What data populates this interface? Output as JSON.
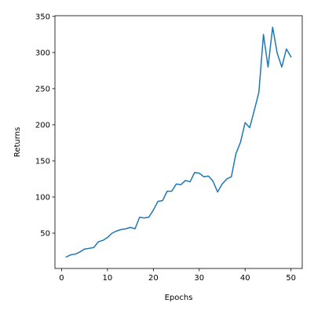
{
  "chart_data": {
    "type": "line",
    "title": "",
    "xlabel": "Epochs",
    "ylabel": "Returns",
    "xlim": [
      -1.45,
      52.45
    ],
    "ylim": [
      1.1,
      351.0
    ],
    "xticks": [
      0,
      10,
      20,
      30,
      40,
      50
    ],
    "yticks": [
      50,
      100,
      150,
      200,
      250,
      300,
      350
    ],
    "grid": false,
    "legend": "none",
    "series": [
      {
        "color": "#1f77b4",
        "x": [
          1,
          2,
          3,
          4,
          5,
          6,
          7,
          8,
          9,
          10,
          11,
          12,
          13,
          14,
          15,
          16,
          17,
          18,
          19,
          20,
          21,
          22,
          23,
          24,
          25,
          26,
          27,
          28,
          29,
          30,
          31,
          32,
          33,
          34,
          35,
          36,
          37,
          38,
          39,
          40,
          41,
          42,
          43,
          44,
          45,
          46,
          47,
          48,
          49,
          50
        ],
        "values": [
          17,
          20,
          21,
          24,
          28,
          29,
          30,
          38,
          40,
          44,
          50,
          53,
          55,
          56,
          58,
          56,
          72,
          71,
          72,
          82,
          94,
          95,
          108,
          108,
          118,
          117,
          123,
          121,
          134,
          133,
          128,
          129,
          122,
          107,
          118,
          125,
          128,
          160,
          176,
          203,
          196,
          220,
          245,
          325,
          280,
          335,
          299,
          280,
          305,
          294
        ]
      }
    ]
  }
}
